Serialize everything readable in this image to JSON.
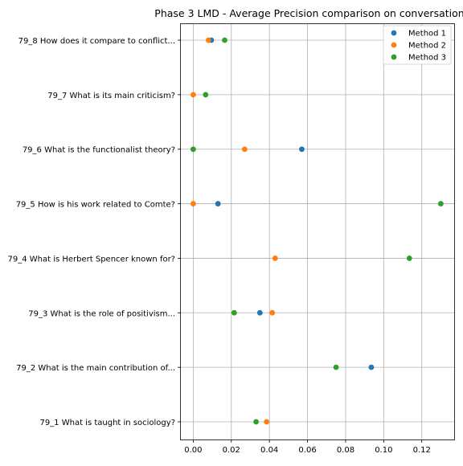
{
  "chart_data": {
    "type": "scatter",
    "title": "Phase 3 LMD - Average Precision comparison on conversation",
    "xlabel": "",
    "ylabel": "",
    "xlim": [
      -0.0065,
      0.137
    ],
    "xticks": [
      "0.00",
      "0.02",
      "0.04",
      "0.06",
      "0.08",
      "0.10",
      "0.12"
    ],
    "xtick_values": [
      0.0,
      0.02,
      0.04,
      0.06,
      0.08,
      0.1,
      0.12
    ],
    "categories": [
      "79_1 What is taught in sociology?",
      "79_2 What is the main contribution of...",
      "79_3 What is the role of positivism...",
      "79_4 What is Herbert Spencer known for?",
      "79_5 How is his work related to Comte?",
      "79_6 What is the functionalist theory?",
      "79_7 What is its main criticism?",
      "79_8 How does it compare to conflict..."
    ],
    "grid": true,
    "legend_position": "top-right",
    "series": [
      {
        "name": "Method 1",
        "color": "#1f77b4",
        "values": [
          null,
          0.0935,
          0.035,
          null,
          0.013,
          0.057,
          null,
          0.0095
        ]
      },
      {
        "name": "Method 2",
        "color": "#ff7f0e",
        "values": [
          0.0385,
          null,
          0.0415,
          0.043,
          0.0,
          0.027,
          0.0,
          0.008
        ]
      },
      {
        "name": "Method 3",
        "color": "#2ca02c",
        "values": [
          0.033,
          0.075,
          0.0215,
          0.1135,
          0.13,
          0.0,
          0.0065,
          0.0165
        ]
      }
    ]
  }
}
